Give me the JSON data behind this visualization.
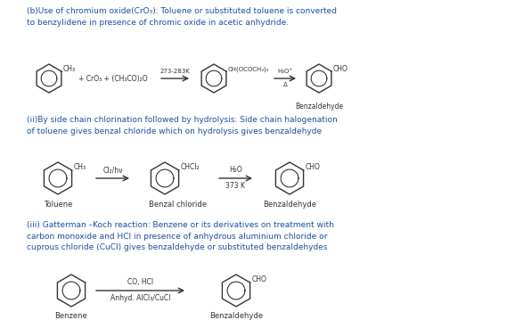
{
  "bg_color": "#ffffff",
  "text_color_blue": "#1a4fa0",
  "text_color_dark": "#2c2c2c",
  "text_color_black": "#000000",
  "fig_width": 5.69,
  "fig_height": 3.68,
  "dpi": 100,
  "section_b_title": "(b)Use of chromium oxide(CrO₃): Toluene or substituted toluene is converted\nto benzylidene in presence of chromic oxide in acetic anhydride.",
  "section_ii_title": "(ii)By side chain chlorination followed by hydrolysis: Side chain halogenation\nof toluene gives benzal chloride which on hydrolysis gives benzaldehyde",
  "section_iii_title": "(iii) Gatterman –Koch reaction: Benzene or its derivatives on treatment with\ncarbon monoxide and HCl in presence of anhydrous aluminium chloride or\ncuprous chloride (CuCl) gives benzaldehyde or substituted benzaldehydes"
}
